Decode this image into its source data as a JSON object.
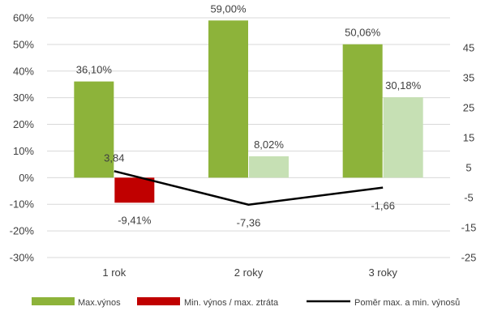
{
  "chart_data": {
    "type": "bar",
    "categories": [
      "1 rok",
      "2 roky",
      "3 roky"
    ],
    "series": [
      {
        "name": "Max.výnos",
        "type": "bar",
        "axis": "left",
        "values": [
          36.1,
          59.0,
          50.06
        ],
        "labels": [
          "36,10%",
          "59,00%",
          "50,06%"
        ]
      },
      {
        "name": "Min. výnos / max. ztráta",
        "type": "bar",
        "axis": "left",
        "values": [
          -9.41,
          8.02,
          30.18
        ],
        "labels": [
          "-9,41%",
          "8,02%",
          "30,18%"
        ]
      },
      {
        "name": "Poměr max. a min. výnosů",
        "type": "line",
        "axis": "right",
        "values": [
          3.84,
          -7.36,
          -1.66
        ],
        "labels": [
          "3,84",
          "-7,36",
          "-1,66"
        ]
      }
    ],
    "y_left": {
      "ylim": [
        -30,
        60
      ],
      "ticks": [
        60,
        50,
        40,
        30,
        20,
        10,
        0,
        -10,
        -20,
        -30
      ],
      "tick_labels": [
        "60%",
        "50%",
        "40%",
        "30%",
        "20%",
        "10%",
        "0%",
        "-10%",
        "-20%",
        "-30%"
      ]
    },
    "y_right": {
      "ylim": [
        -25,
        55
      ],
      "ticks": [
        45,
        35,
        25,
        15,
        5,
        -5,
        -15,
        -25
      ],
      "tick_labels": [
        "45",
        "35",
        "25",
        "15",
        "5",
        "-5",
        "-15",
        "-25"
      ]
    },
    "colors": {
      "max_bar": "#8db33a",
      "min_bar_negative": "#c00000",
      "min_bar_positive": "#c6e0b4",
      "line": "#000000",
      "grid": "#d9d9d9"
    },
    "grid": true,
    "legend_position": "bottom"
  }
}
